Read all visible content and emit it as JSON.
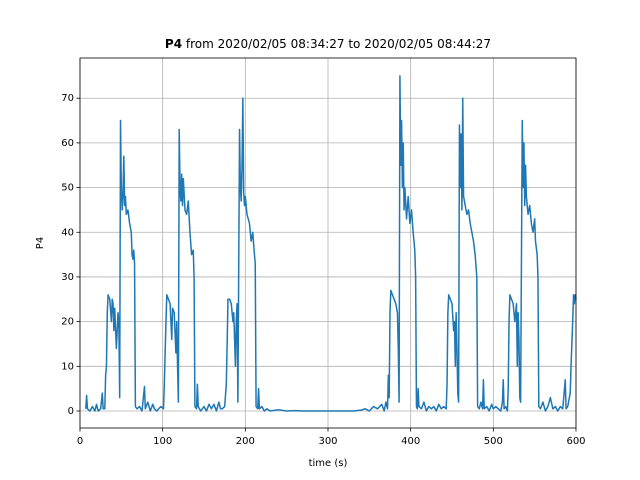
{
  "chart_data": {
    "type": "line",
    "title_bold": "P4",
    "title": "from 2020/02/05 08:34:27 to 2020/02/05 08:44:27",
    "xlabel": "time (s)",
    "ylabel": "P4",
    "color": "#1f77b4",
    "grid": true,
    "xlim": [
      0,
      600
    ],
    "xticks": [
      0,
      100,
      200,
      300,
      400,
      500,
      600
    ],
    "ylim": [
      -3.8,
      79
    ],
    "yticks": [
      0,
      10,
      20,
      30,
      40,
      50,
      60,
      70
    ],
    "x": [
      7,
      8,
      9,
      12,
      15,
      18,
      20,
      22,
      25,
      27,
      28,
      30,
      31,
      32,
      33,
      34,
      36,
      38,
      39,
      40,
      41,
      42,
      44,
      46,
      47,
      48,
      49,
      50,
      51,
      52,
      53,
      54,
      55,
      56,
      58,
      60,
      62,
      63,
      64,
      65,
      66,
      67,
      69,
      72,
      75,
      78,
      79,
      82,
      85,
      88,
      90,
      93,
      95,
      98,
      101,
      102,
      104,
      105,
      107,
      109,
      111,
      112,
      114,
      116,
      117,
      118,
      119,
      120,
      121,
      122,
      123,
      124,
      125,
      127,
      129,
      131,
      133,
      135,
      137,
      138,
      139,
      141,
      142,
      143,
      146,
      150,
      153,
      156,
      159,
      162,
      165,
      168,
      170,
      172,
      175,
      177,
      178,
      179,
      181,
      183,
      185,
      186,
      188,
      189,
      190,
      191,
      193,
      194,
      195,
      196,
      197,
      198,
      199,
      200,
      202,
      205,
      207,
      209,
      211,
      212,
      213,
      215,
      216,
      217,
      220,
      223,
      226,
      230,
      240,
      250,
      260,
      270,
      280,
      290,
      300,
      310,
      320,
      330,
      340,
      345,
      350,
      355,
      360,
      365,
      368,
      370,
      372,
      373,
      374,
      375,
      376,
      378,
      380,
      382,
      384,
      385,
      386,
      387,
      388,
      389,
      390,
      391,
      392,
      393,
      395,
      397,
      399,
      401,
      403,
      405,
      406,
      407,
      408,
      409,
      410,
      413,
      416,
      419,
      422,
      425,
      428,
      431,
      434,
      437,
      440,
      443,
      444,
      445,
      446,
      448,
      450,
      452,
      453,
      454,
      455,
      456,
      457,
      458,
      459,
      460,
      461,
      462,
      463,
      464,
      466,
      468,
      470,
      472,
      474,
      476,
      478,
      480,
      481,
      483,
      485,
      487,
      488,
      489,
      492,
      495,
      498,
      500,
      503,
      506,
      509,
      511,
      512,
      513,
      515,
      517,
      518,
      519,
      520,
      522,
      524,
      526,
      528,
      529,
      530,
      531,
      532,
      533,
      535,
      536,
      537,
      538,
      539,
      540,
      542,
      544,
      546,
      548,
      550,
      551,
      553,
      554,
      555,
      557,
      560,
      563,
      566,
      569,
      572,
      575,
      578,
      581,
      584,
      587,
      588,
      590,
      593,
      594,
      596,
      597,
      598,
      599,
      600
    ],
    "values": [
      0.5,
      3.5,
      0.5,
      0,
      1,
      0,
      1.5,
      0,
      0.5,
      4,
      0.5,
      0.5,
      8,
      10,
      22,
      26,
      25,
      20,
      25,
      24,
      18,
      23,
      14,
      22,
      20,
      3,
      65,
      50,
      45,
      48,
      57,
      46,
      48,
      44,
      45,
      42,
      40,
      35,
      34,
      36,
      33,
      1,
      0.5,
      1,
      0,
      5.5,
      0.5,
      2,
      0,
      1.5,
      0.5,
      0,
      0.5,
      1,
      0.5,
      6,
      20,
      26,
      25,
      24,
      16,
      23,
      22,
      13,
      20,
      10,
      2,
      63,
      50,
      47,
      53,
      46,
      52,
      45,
      44,
      47,
      40,
      35,
      36,
      30,
      1,
      0.5,
      6,
      1,
      0,
      1,
      0,
      1.5,
      0.5,
      1.5,
      0,
      2,
      0.5,
      0.5,
      1,
      6,
      15,
      25,
      25,
      24,
      20,
      22,
      10,
      20,
      24,
      2,
      63,
      50,
      47,
      55,
      70,
      49,
      46,
      48,
      44,
      42,
      38,
      40,
      35,
      33,
      1,
      0.5,
      5,
      0.5,
      1,
      0,
      0.5,
      0,
      0.3,
      0,
      0.1,
      0,
      0,
      0,
      0,
      0,
      0,
      0,
      0.2,
      0.5,
      0,
      1,
      0.5,
      1.5,
      0,
      2,
      0.5,
      8,
      3,
      22,
      27,
      26,
      25,
      24,
      22,
      14,
      2,
      75,
      55,
      65,
      50,
      60,
      45,
      50,
      43,
      48,
      42,
      45,
      40,
      36,
      30,
      1,
      0.5,
      5,
      1,
      0.5,
      2,
      0,
      1,
      0.5,
      1,
      0,
      1.5,
      0.5,
      1,
      0.5,
      6,
      22,
      26,
      25,
      24,
      18,
      20,
      10,
      22,
      14,
      4,
      2,
      64,
      50,
      62,
      45,
      70,
      48,
      46,
      44,
      45,
      42,
      40,
      38,
      35,
      30,
      1,
      0.5,
      2,
      0.5,
      7,
      0.5,
      1,
      0,
      1.5,
      0.5,
      1,
      0.5,
      0,
      2,
      7,
      0.5,
      1,
      0,
      5,
      20,
      26,
      25,
      24,
      20,
      24,
      10,
      22,
      16,
      3,
      2,
      65,
      50,
      60,
      46,
      55,
      48,
      44,
      46,
      42,
      40,
      43,
      38,
      35,
      30,
      1,
      0.5,
      2,
      0,
      1,
      3,
      0.5,
      1,
      0,
      1,
      0.5,
      7,
      0.5,
      1,
      4,
      10,
      20,
      26,
      24,
      26,
      25
    ]
  }
}
